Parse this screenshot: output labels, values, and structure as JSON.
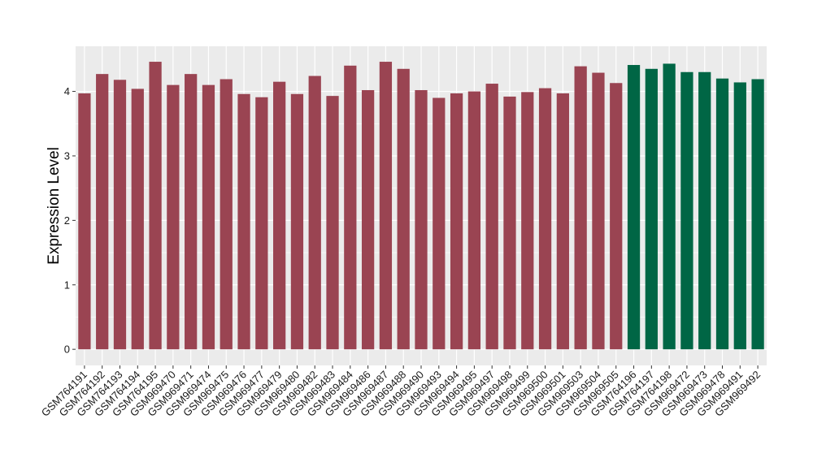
{
  "chart_data": {
    "type": "bar",
    "title": "",
    "xlabel": "",
    "ylabel": "Expression Level",
    "ylim": [
      -0.25,
      4.7
    ],
    "yticks": [
      0,
      1,
      2,
      3,
      4
    ],
    "grid": true,
    "background": "#ebebeb",
    "colors": {
      "group1": "#9a4452",
      "group2": "#006645",
      "grid": "#ffffff"
    },
    "categories": [
      "GSM764191",
      "GSM764192",
      "GSM764193",
      "GSM764194",
      "GSM764195",
      "GSM969470",
      "GSM969471",
      "GSM969474",
      "GSM969475",
      "GSM969476",
      "GSM969477",
      "GSM969479",
      "GSM969480",
      "GSM969482",
      "GSM969483",
      "GSM969484",
      "GSM969486",
      "GSM969487",
      "GSM969488",
      "GSM969490",
      "GSM969493",
      "GSM969494",
      "GSM969495",
      "GSM969497",
      "GSM969498",
      "GSM969499",
      "GSM969500",
      "GSM969501",
      "GSM969503",
      "GSM969504",
      "GSM969505",
      "GSM764196",
      "GSM764197",
      "GSM764198",
      "GSM969472",
      "GSM969473",
      "GSM969478",
      "GSM969491",
      "GSM969492"
    ],
    "values": [
      3.97,
      4.27,
      4.18,
      4.04,
      4.46,
      4.1,
      4.27,
      4.1,
      4.19,
      3.96,
      3.91,
      4.15,
      3.96,
      4.24,
      3.93,
      4.4,
      4.02,
      4.46,
      4.35,
      4.02,
      3.9,
      3.97,
      4.0,
      4.12,
      3.92,
      3.99,
      4.05,
      3.97,
      4.39,
      4.29,
      4.13,
      4.41,
      4.35,
      4.43,
      4.3,
      4.3,
      4.2,
      4.14,
      4.19
    ],
    "groups": [
      1,
      1,
      1,
      1,
      1,
      1,
      1,
      1,
      1,
      1,
      1,
      1,
      1,
      1,
      1,
      1,
      1,
      1,
      1,
      1,
      1,
      1,
      1,
      1,
      1,
      1,
      1,
      1,
      1,
      1,
      1,
      2,
      2,
      2,
      2,
      2,
      2,
      2,
      2
    ]
  }
}
